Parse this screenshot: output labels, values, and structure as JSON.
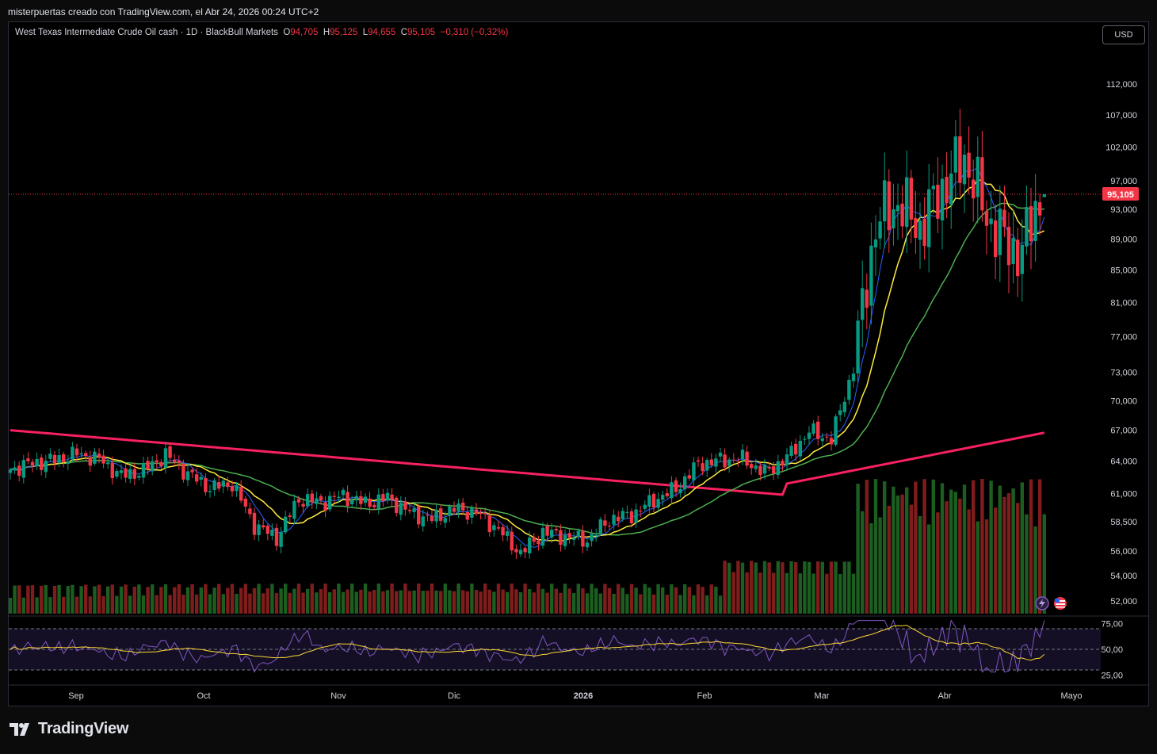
{
  "header": {
    "caption": "misterpuertas creado con TradingView.com, el Abr 24, 2026 00:24 UTC+2"
  },
  "legend": {
    "symbol": "West Texas Intermediate Crude Oil cash · 1D · BlackBull Markets",
    "o_label": "O",
    "o_value": "94,705",
    "h_label": "H",
    "h_value": "95,125",
    "l_label": "L",
    "l_value": "94,655",
    "c_label": "C",
    "c_value": "95,105",
    "change": "−0,310 (−0,32%)"
  },
  "currency_button": "USD",
  "footer": {
    "brand": "TradingView"
  },
  "colors": {
    "up": "#089981",
    "down": "#f23645",
    "ma_fast": "#2962ff",
    "ma_mid": "#ffeb3b",
    "ma_slow": "#4caf50",
    "ma_long": "#f7215f",
    "rsi": "#7e57c2",
    "rsi_ma": "#fdd835"
  },
  "icons": [
    "lightning-icon",
    "us-flag-icon"
  ],
  "chart_data": {
    "type": "candlestick",
    "price_axis": {
      "ticks": [
        112000,
        107000,
        102000,
        97000,
        93000,
        89000,
        85000,
        81000,
        77000,
        73000,
        70000,
        67000,
        64000,
        61000,
        58500,
        56000,
        54000,
        52000
      ],
      "tick_labels": [
        "112,000",
        "107,000",
        "102,000",
        "97,000",
        "93,000",
        "89,000",
        "85,000",
        "81,000",
        "77,000",
        "73,000",
        "70,000",
        "67,000",
        "64,000",
        "61,000",
        "58,500",
        "56,000",
        "54,000",
        "52,000"
      ],
      "scale": "log"
    },
    "last_price": {
      "value": 95105,
      "label": "95,105"
    },
    "time_axis": {
      "labels": [
        "Sep",
        "Oct",
        "Nov",
        "Dic",
        "2026",
        "Feb",
        "Mar",
        "Abr",
        "Mayo"
      ]
    },
    "rsi_panel": {
      "ticks": [
        75,
        50,
        25
      ],
      "tick_labels": [
        "75,00",
        "50,00",
        "25,00"
      ]
    },
    "ohlc_points": [
      {
        "i": 0,
        "c": 63200
      },
      {
        "i": 5,
        "c": 63800
      },
      {
        "i": 10,
        "c": 64100
      },
      {
        "i": 15,
        "c": 64700
      },
      {
        "i": 20,
        "c": 64200
      },
      {
        "i": 25,
        "c": 62600
      },
      {
        "i": 30,
        "c": 63100
      },
      {
        "i": 35,
        "c": 64600
      },
      {
        "i": 40,
        "c": 62800
      },
      {
        "i": 45,
        "c": 61500
      },
      {
        "i": 50,
        "c": 61900
      },
      {
        "i": 55,
        "c": 58200
      },
      {
        "i": 60,
        "c": 57100
      },
      {
        "i": 65,
        "c": 60500
      },
      {
        "i": 70,
        "c": 60200
      },
      {
        "i": 75,
        "c": 60800
      },
      {
        "i": 80,
        "c": 60100
      },
      {
        "i": 85,
        "c": 60600
      },
      {
        "i": 90,
        "c": 59300
      },
      {
        "i": 95,
        "c": 58700
      },
      {
        "i": 100,
        "c": 59600
      },
      {
        "i": 105,
        "c": 59300
      },
      {
        "i": 110,
        "c": 57800
      },
      {
        "i": 115,
        "c": 55800
      },
      {
        "i": 120,
        "c": 57600
      },
      {
        "i": 125,
        "c": 57200
      },
      {
        "i": 130,
        "c": 56900
      },
      {
        "i": 135,
        "c": 58700
      },
      {
        "i": 140,
        "c": 59100
      },
      {
        "i": 145,
        "c": 60400
      },
      {
        "i": 150,
        "c": 61400
      },
      {
        "i": 155,
        "c": 63700
      },
      {
        "i": 160,
        "c": 64100
      },
      {
        "i": 165,
        "c": 64200
      },
      {
        "i": 170,
        "c": 62900
      },
      {
        "i": 175,
        "c": 64300
      },
      {
        "i": 180,
        "c": 66900
      },
      {
        "i": 185,
        "c": 66100
      },
      {
        "i": 190,
        "c": 73500
      },
      {
        "i": 195,
        "c": 91000
      },
      {
        "i": 200,
        "c": 94000
      },
      {
        "i": 205,
        "c": 90500
      },
      {
        "i": 210,
        "c": 96000
      },
      {
        "i": 215,
        "c": 100500
      },
      {
        "i": 220,
        "c": 92000
      },
      {
        "i": 225,
        "c": 88000
      },
      {
        "i": 228,
        "c": 87400
      },
      {
        "i": 231,
        "c": 93200
      },
      {
        "i": 233,
        "c": 95105
      }
    ]
  }
}
